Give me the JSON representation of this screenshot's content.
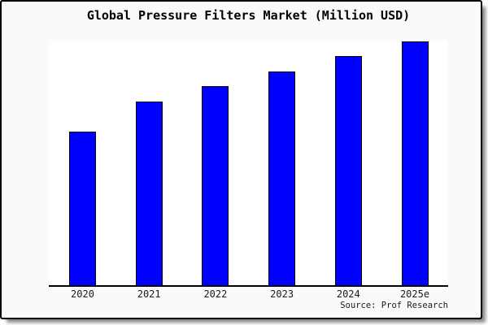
{
  "frame": {
    "background": "#fafafa",
    "border_color": "#000000",
    "shadow_color": "#8a8a8a"
  },
  "chart_data": {
    "type": "bar",
    "title": "Global Pressure Filters Market (Million USD)",
    "categories": [
      "2020",
      "2021",
      "2022",
      "2023",
      "2024",
      "2025e"
    ],
    "values": [
      62.6,
      74.8,
      81.1,
      87.1,
      93.4,
      99.5
    ],
    "xlabel": "",
    "ylabel": "",
    "ylim": [
      0,
      100
    ],
    "y_axis_labels_visible": false,
    "grid": false,
    "legend": false,
    "bar_color": "#0000ff",
    "bar_edge_color": "#000000",
    "axis_color": "#000000",
    "plot_background": "#ffffff"
  },
  "source": {
    "label": "Source: Prof Research"
  }
}
